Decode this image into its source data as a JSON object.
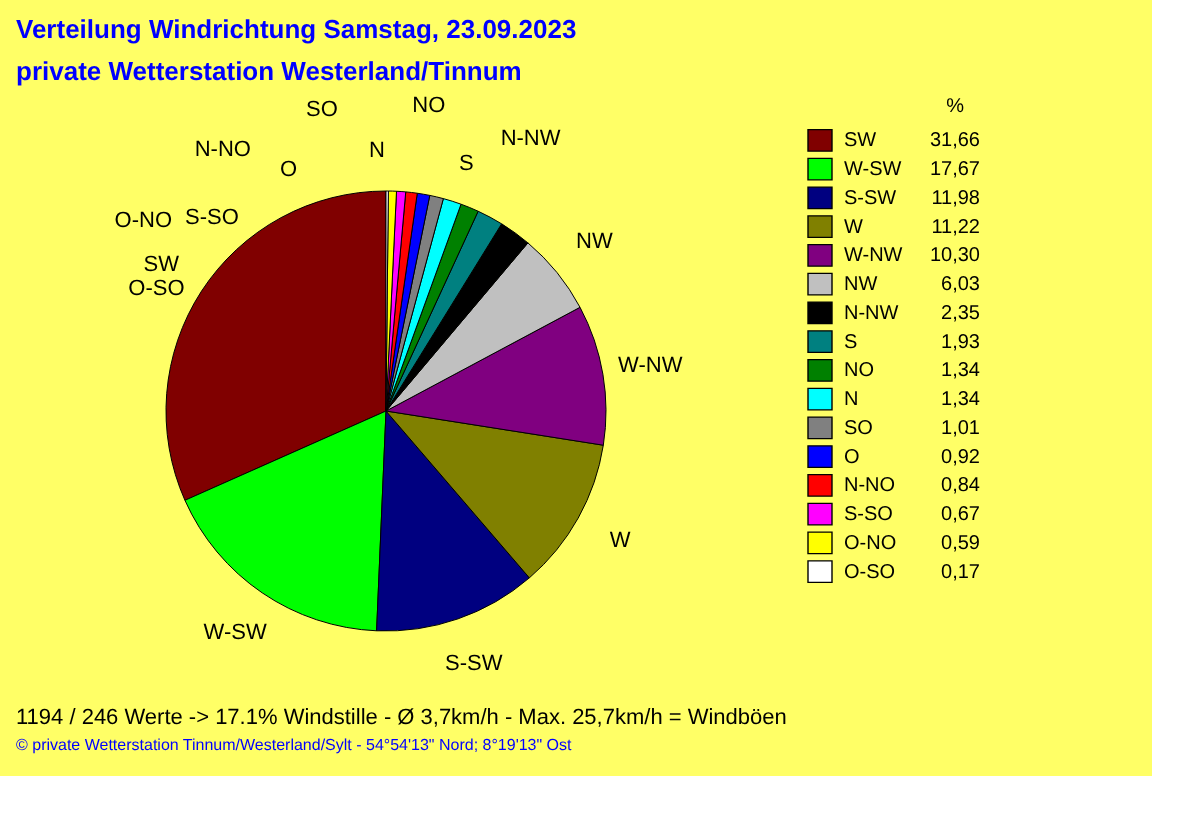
{
  "chart_data": {
    "type": "pie",
    "title": "Verteilung Windrichtung   Samstag, 23.09.2023",
    "subtitle": "private Wetterstation Westerland/Tinnum",
    "legend_title": "%",
    "legend": "right",
    "categories": [
      "SW",
      "W-SW",
      "S-SW",
      "W",
      "W-NW",
      "NW",
      "N-NW",
      "S",
      "NO",
      "N",
      "SO",
      "O",
      "N-NO",
      "S-SO",
      "O-NO",
      "O-SO"
    ],
    "values": [
      31.66,
      17.67,
      11.98,
      11.22,
      10.3,
      6.03,
      2.35,
      1.93,
      1.34,
      1.34,
      1.01,
      0.92,
      0.84,
      0.67,
      0.59,
      0.17
    ],
    "value_labels": [
      "31,66",
      "17,67",
      "11,98",
      "11,22",
      "10,30",
      "6,03",
      "2,35",
      "1,93",
      "1,34",
      "1,34",
      "1,01",
      "0,92",
      "0,84",
      "0,67",
      "0,59",
      "0,17"
    ],
    "colors": [
      "#800000",
      "#00ff00",
      "#000080",
      "#808000",
      "#800080",
      "#c0c0c0",
      "#000000",
      "#008080",
      "#008000",
      "#00ffff",
      "#808080",
      "#0000ff",
      "#ff0000",
      "#ff00ff",
      "#ffff00",
      "#ffffff"
    ],
    "annotations": [
      "1194 / 246 Werte  -> 17.1% Windstille   -   Ø 3,7km/h  -  Max. 25,7km/h = Windböen",
      "© private Wetterstation Tinnum/Westerland/Sylt  -  54°54'13\" Nord; 8°19'13\" Ost"
    ]
  }
}
